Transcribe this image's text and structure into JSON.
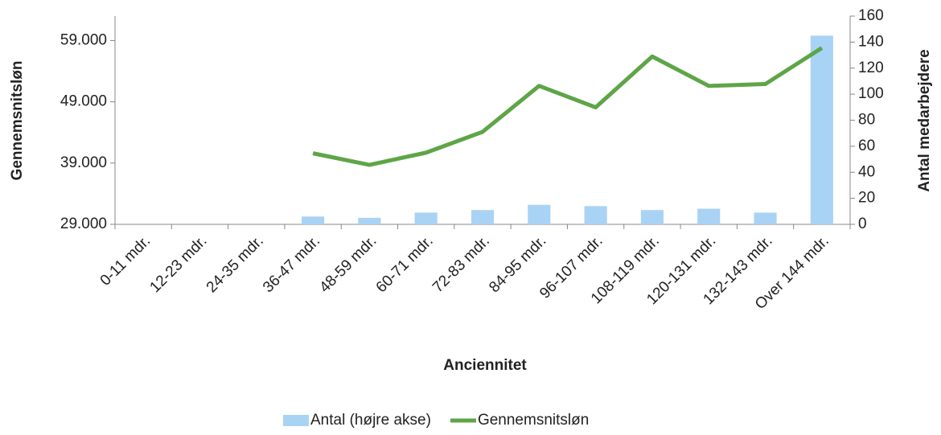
{
  "chart_data": {
    "type": "bar_line",
    "x_label": "Anciennitet",
    "y_label": "Gennemsnitsløn",
    "y2_label": "Antal medarbejdere",
    "categories": [
      "0-11 mdr.",
      "12-23 mdr.",
      "24-35 mdr.",
      "36-47 mdr.",
      "48-59 mdr.",
      "60-71 mdr.",
      "72-83 mdr.",
      "84-95 mdr.",
      "96-107 mdr.",
      "108-119 mdr.",
      "120-131 mdr.",
      "132-143 mdr.",
      "Over 144 mdr."
    ],
    "series": [
      {
        "name": "Antal (højre akse)",
        "color": "#a9d3f5",
        "kind": "bar",
        "axis": "y2",
        "values": [
          0,
          0,
          0,
          6,
          5,
          9,
          11,
          15,
          14,
          11,
          12,
          9,
          145
        ]
      },
      {
        "name": "Gennemsnitsløn",
        "color": "#5ea548",
        "kind": "line",
        "axis": "y",
        "values": [
          null,
          null,
          null,
          40600,
          38700,
          40700,
          44100,
          51600,
          48100,
          56400,
          51600,
          51900,
          57800
        ]
      }
    ],
    "ylim": [
      29000,
      63000
    ],
    "yticks": [
      {
        "value": 29000,
        "label": "29.000"
      },
      {
        "value": 39000,
        "label": "39.000"
      },
      {
        "value": 49000,
        "label": "49.000"
      },
      {
        "value": 59000,
        "label": "59.000"
      }
    ],
    "y2lim": [
      0,
      160
    ],
    "y2ticks": [
      0,
      20,
      40,
      60,
      80,
      100,
      120,
      140,
      160
    ],
    "legend": "bottom"
  }
}
